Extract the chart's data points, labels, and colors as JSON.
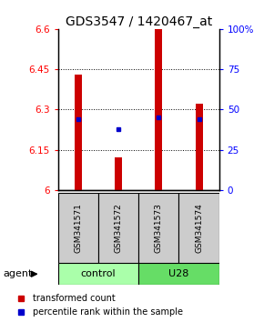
{
  "title": "GDS3547 / 1420467_at",
  "samples": [
    "GSM341571",
    "GSM341572",
    "GSM341573",
    "GSM341574"
  ],
  "bar_values": [
    6.43,
    6.12,
    6.6,
    6.32
  ],
  "percentile_values": [
    6.265,
    6.225,
    6.27,
    6.265
  ],
  "ylim_left": [
    6.0,
    6.6
  ],
  "ylim_right": [
    0,
    100
  ],
  "yticks_left": [
    6.0,
    6.15,
    6.3,
    6.45,
    6.6
  ],
  "ytick_labels_left": [
    "6",
    "6.15",
    "6.3",
    "6.45",
    "6.6"
  ],
  "yticks_right": [
    0,
    25,
    50,
    75,
    100
  ],
  "ytick_labels_right": [
    "0",
    "25",
    "50",
    "75",
    "100%"
  ],
  "bar_color": "#cc0000",
  "percentile_color": "#0000cc",
  "bar_width": 0.18,
  "sample_box_color": "#cccccc",
  "control_color": "#aaffaa",
  "u28_color": "#66dd66",
  "agent_label": "agent",
  "legend_bar_label": "transformed count",
  "legend_pct_label": "percentile rank within the sample",
  "title_fontsize": 10,
  "tick_fontsize": 7.5,
  "sample_fontsize": 6.5,
  "group_fontsize": 8
}
